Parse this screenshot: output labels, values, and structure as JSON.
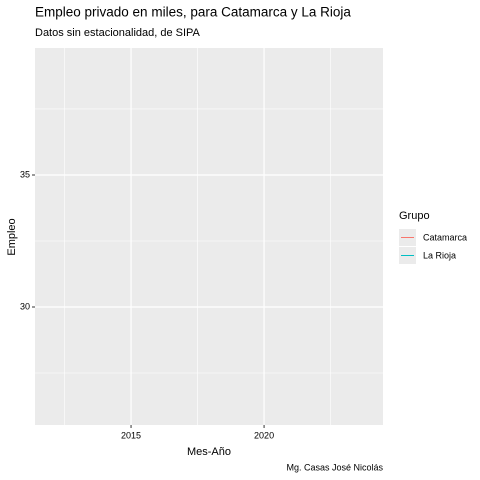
{
  "chart_data": {
    "type": "line",
    "title": "Empleo privado en miles, para Catamarca y La Rioja",
    "subtitle": "Datos sin estacionalidad, de SIPA",
    "x_label": "Mes-Año",
    "y_label": "Empleo",
    "caption": "Mg. Casas José Nicolás",
    "legend_title": "Grupo",
    "x": [],
    "series": [
      {
        "name": "Catamarca",
        "color": "#F8766D",
        "values": []
      },
      {
        "name": "La Rioja",
        "color": "#00BFC4",
        "values": []
      }
    ],
    "xlim": [
      2011.39,
      2024.47
    ],
    "xticks": [
      2015,
      2020
    ],
    "minor_xticks": [
      2012.5,
      2017.5,
      2022.5
    ],
    "ylim": [
      25.53,
      39.81
    ],
    "yticks": [
      30,
      35
    ],
    "minor_yticks": [
      27.5,
      32.5,
      37.5
    ],
    "grid": true,
    "legend": "right"
  }
}
